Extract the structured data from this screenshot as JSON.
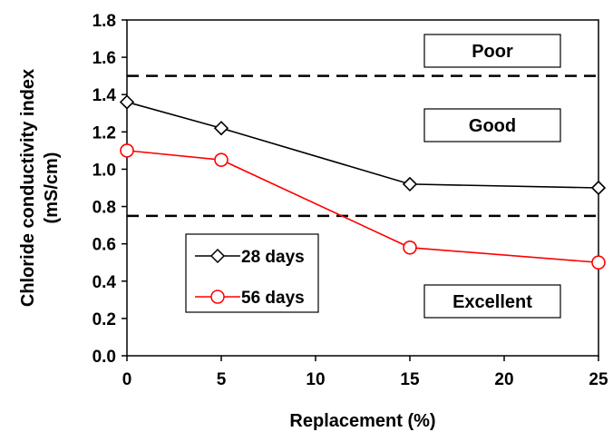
{
  "chart_data": {
    "type": "line",
    "xlabel": "Replacement (%)",
    "ylabel_lines": [
      "Chloride conductivity index",
      "(mS/cm)"
    ],
    "xlim": [
      0,
      25
    ],
    "ylim": [
      0,
      1.8
    ],
    "xticks": [
      "0",
      "5",
      "10",
      "15",
      "20",
      "25"
    ],
    "yticks": [
      "0.0",
      "0.2",
      "0.4",
      "0.6",
      "0.8",
      "1.0",
      "1.2",
      "1.4",
      "1.6",
      "1.8"
    ],
    "grid": false,
    "legend_position": "center-left",
    "series": [
      {
        "name": "28 days",
        "color": "#000000",
        "marker": "diamond",
        "x": [
          0,
          5,
          15,
          25
        ],
        "y": [
          1.36,
          1.22,
          0.92,
          0.9
        ]
      },
      {
        "name": "56 days",
        "color": "#ff0000",
        "marker": "circle",
        "x": [
          0,
          5,
          15,
          25
        ],
        "y": [
          1.1,
          1.05,
          0.58,
          0.5
        ]
      }
    ],
    "thresholds": [
      {
        "y": 1.5,
        "style": "dashed"
      },
      {
        "y": 0.75,
        "style": "dashed"
      }
    ],
    "band_labels": [
      "Poor",
      "Good",
      "Excellent"
    ]
  }
}
